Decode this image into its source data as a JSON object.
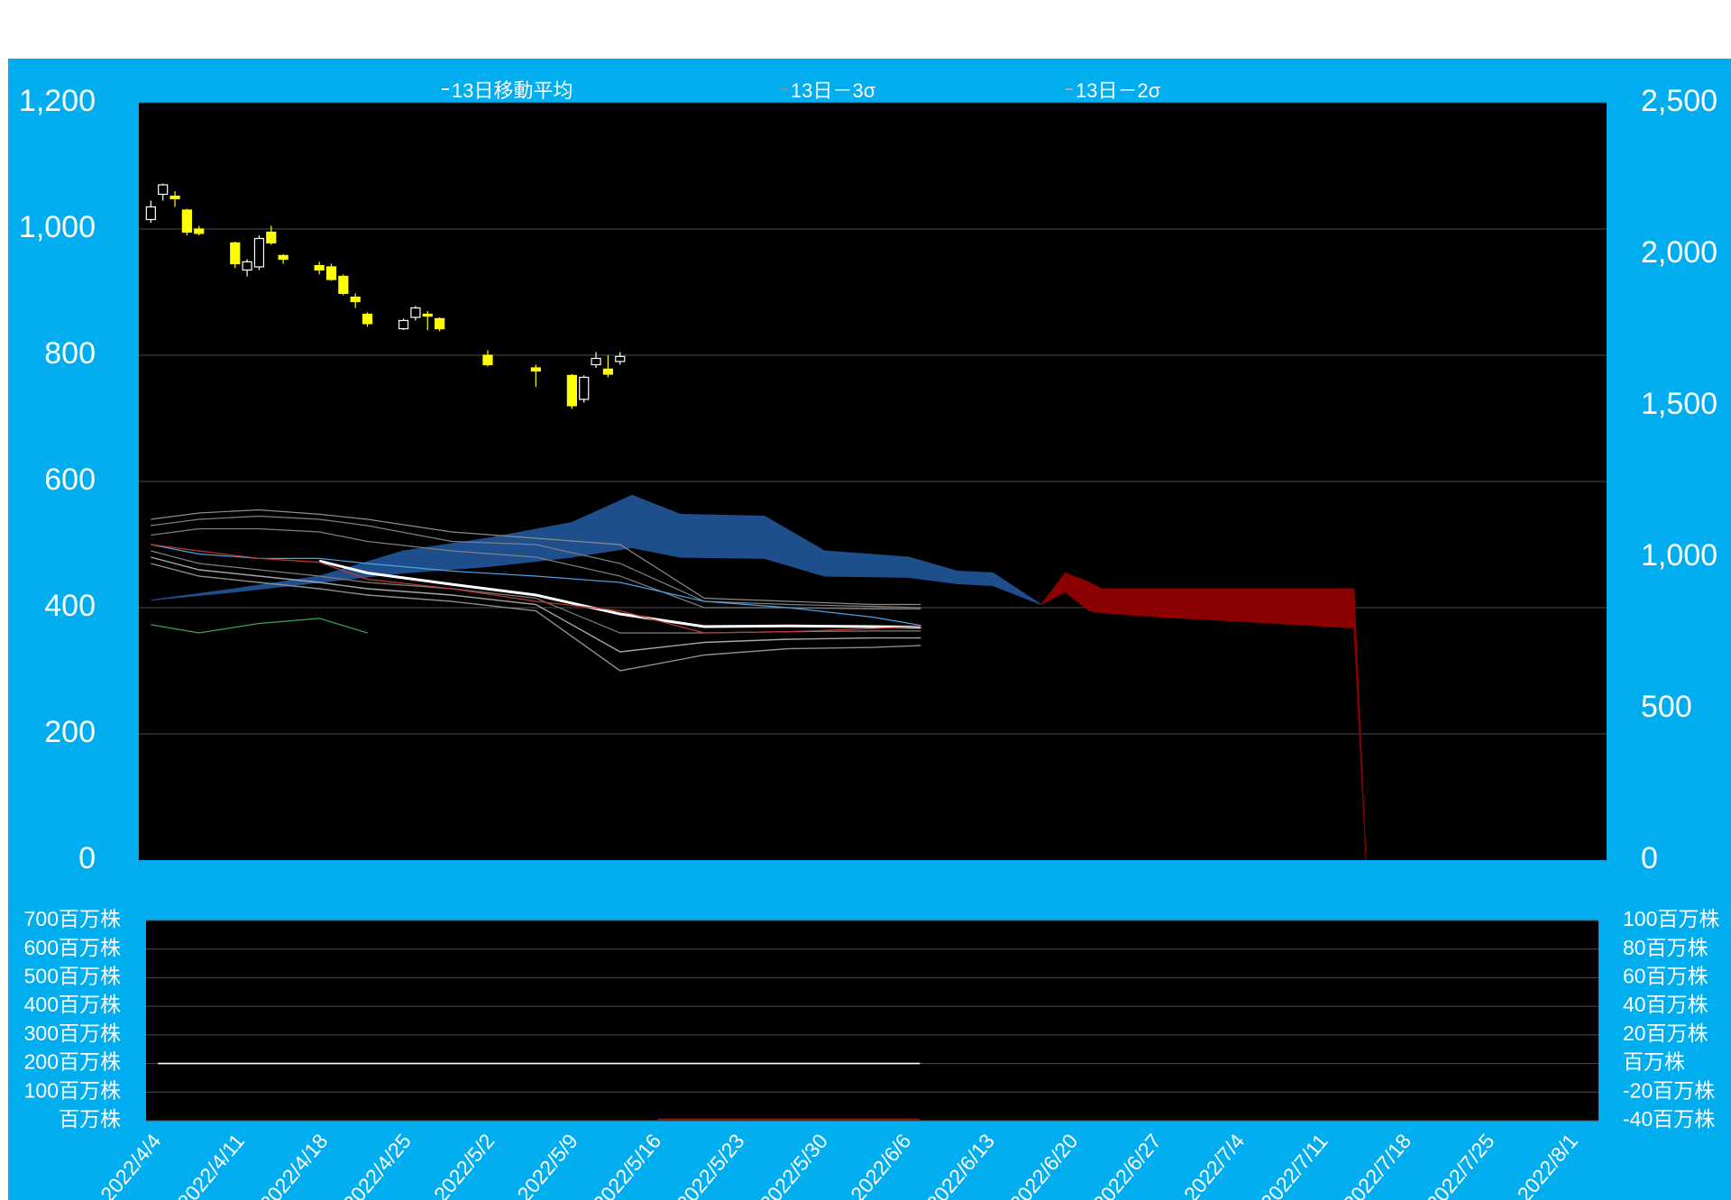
{
  "chart_data": [
    {
      "type": "candlestick",
      "xlim": [
        "2022/4/3",
        "2022/8/3"
      ],
      "ylim": [
        0,
        1200
      ],
      "yticks": [
        0,
        200,
        400,
        600,
        800,
        {
          "value": 1000,
          "label": "1,000"
        },
        {
          "value": 1200,
          "label": "1,200"
        }
      ],
      "y2lim": [
        0,
        2500
      ],
      "y2ticks": [
        0,
        500,
        {
          "value": 1000,
          "label": "1,000"
        },
        {
          "value": 1500,
          "label": "1,500"
        },
        {
          "value": 2000,
          "label": "2,000"
        },
        {
          "value": 2500,
          "label": "2,500"
        }
      ],
      "grid": true,
      "up_color": "#ffffff",
      "down_color": "#ffff00",
      "x": [
        "2022/4/4",
        "2022/4/5",
        "2022/4/6",
        "2022/4/7",
        "2022/4/8",
        "2022/4/11",
        "2022/4/12",
        "2022/4/13",
        "2022/4/14",
        "2022/4/15",
        "2022/4/18",
        "2022/4/19",
        "2022/4/20",
        "2022/4/21",
        "2022/4/22",
        "2022/4/25",
        "2022/4/26",
        "2022/4/27",
        "2022/4/28",
        "2022/5/2",
        "2022/5/6",
        "2022/5/9",
        "2022/5/10",
        "2022/5/11",
        "2022/5/12",
        "2022/5/13"
      ],
      "open": [
        1015,
        1055,
        1052,
        1030,
        1000,
        978,
        935,
        940,
        995,
        958,
        942,
        940,
        925,
        892,
        865,
        842,
        860,
        865,
        858,
        800,
        780,
        768,
        730,
        785,
        778,
        790
      ],
      "high": [
        1045,
        1072,
        1060,
        1032,
        1005,
        980,
        952,
        990,
        1005,
        960,
        948,
        945,
        928,
        898,
        868,
        858,
        878,
        870,
        860,
        808,
        785,
        770,
        768,
        805,
        800,
        805
      ],
      "low": [
        1010,
        1045,
        1035,
        990,
        990,
        938,
        925,
        935,
        975,
        945,
        928,
        918,
        895,
        875,
        845,
        840,
        855,
        840,
        838,
        782,
        750,
        715,
        725,
        780,
        765,
        785
      ],
      "close": [
        1035,
        1070,
        1048,
        995,
        993,
        945,
        948,
        985,
        978,
        952,
        935,
        920,
        898,
        885,
        850,
        855,
        875,
        862,
        842,
        785,
        775,
        720,
        765,
        795,
        770,
        798
      ],
      "lines": {
        "x": [
          "2022/4/4",
          "2022/4/8",
          "2022/4/13",
          "2022/4/18",
          "2022/4/22",
          "2022/4/29",
          "2022/5/6",
          "2022/5/13",
          "2022/5/20",
          "2022/5/27",
          "2022/6/3",
          "2022/6/7"
        ],
        "series": [
          {
            "name": "13日移動平均",
            "color": "#ffffff",
            "values": [
              null,
              null,
              null,
              474,
              455,
              437,
              420,
              390,
              370,
              371,
              370,
              369
            ]
          },
          {
            "name": "13日－3σ",
            "color": "#8c8c8c",
            "values": [
              470,
              450,
              440,
              430,
              420,
              410,
              395,
              300,
              325,
              335,
              337,
              340
            ]
          },
          {
            "name": "13日－2σ",
            "color": "#a6a6a6",
            "values": [
              480,
              460,
              450,
              440,
              430,
              420,
              405,
              330,
              345,
              350,
              352,
              352
            ]
          },
          {
            "color": "#7f7f7f",
            "values": [
              490,
              470,
              460,
              450,
              440,
              430,
              415,
              360,
              360,
              362,
              363,
              363
            ]
          },
          {
            "color": "#7f7f7f",
            "values": [
              515,
              525,
              525,
              520,
              505,
              490,
              480,
              450,
              400,
              400,
              398,
              398
            ]
          },
          {
            "color": "#7f7f7f",
            "values": [
              530,
              540,
              545,
              540,
              530,
              505,
              500,
              470,
              410,
              405,
              402,
              400
            ]
          },
          {
            "color": "#8c8c8c",
            "values": [
              540,
              550,
              555,
              548,
              540,
              520,
              510,
              500,
              415,
              410,
              405,
              405
            ]
          },
          {
            "color": "#4ba3e3",
            "values": [
              500,
              485,
              478,
              478,
              470,
              458,
              450,
              440,
              410,
              400,
              385,
              372
            ]
          },
          {
            "color": "#c0392b",
            "values": [
              500,
              490,
              478,
              472,
              445,
              430,
              410,
              395,
              360,
              362,
              367,
              370
            ]
          },
          {
            "color": "#3fa34d",
            "values": [
              373,
              360,
              375,
              383,
              360,
              null,
              null,
              null,
              null,
              null,
              null,
              null
            ]
          }
        ]
      },
      "bands": [
        {
          "color": "#1f4e8c",
          "x": [
            "2022/4/4",
            "2022/4/11",
            "2022/4/18",
            "2022/4/25",
            "2022/5/2",
            "2022/5/9",
            "2022/5/14",
            "2022/5/18",
            "2022/5/25",
            "2022/5/30",
            "2022/6/6",
            "2022/6/10",
            "2022/6/13",
            "2022/6/17"
          ],
          "upper": [
            412,
            430,
            450,
            490,
            510,
            535,
            578,
            548,
            545,
            490,
            480,
            458,
            455,
            405
          ],
          "lower": [
            412,
            425,
            440,
            455,
            465,
            480,
            495,
            480,
            478,
            450,
            448,
            438,
            435,
            405
          ]
        },
        {
          "color": "#8b0000",
          "x": [
            "2022/6/17",
            "2022/6/19",
            "2022/6/21",
            "2022/6/22",
            "2022/6/27",
            "2022/7/4",
            "2022/7/11",
            "2022/7/13",
            "2022/7/14"
          ],
          "upper": [
            405,
            455,
            440,
            430,
            430,
            430,
            430,
            430,
            0
          ],
          "lower": [
            405,
            425,
            395,
            392,
            385,
            378,
            370,
            368,
            0
          ]
        }
      ]
    },
    {
      "type": "line",
      "xlim": [
        "2022/4/3",
        "2022/8/3"
      ],
      "xticks": [
        "2022/4/4",
        "2022/4/11",
        "2022/4/18",
        "2022/4/25",
        "2022/5/2",
        "2022/5/9",
        "2022/5/16",
        "2022/5/23",
        "2022/5/30",
        "2022/6/6",
        "2022/6/13",
        "2022/6/20",
        "2022/6/27",
        "2022/7/4",
        "2022/7/11",
        "2022/7/18",
        "2022/7/25",
        "2022/8/1"
      ],
      "ylim": [
        0,
        700
      ],
      "yticks": [
        {
          "value": 0,
          "label": "百万株"
        },
        {
          "value": 100,
          "label": "100百万株"
        },
        {
          "value": 200,
          "label": "200百万株"
        },
        {
          "value": 300,
          "label": "300百万株"
        },
        {
          "value": 400,
          "label": "400百万株"
        },
        {
          "value": 500,
          "label": "500百万株"
        },
        {
          "value": 600,
          "label": "600百万株"
        },
        {
          "value": 700,
          "label": "700百万株"
        }
      ],
      "y2lim": [
        -40,
        100
      ],
      "y2ticks": [
        {
          "value": -40,
          "label": "-40百万株"
        },
        {
          "value": -20,
          "label": "-20百万株"
        },
        {
          "value": 0,
          "label": "百万株"
        },
        {
          "value": 20,
          "label": "20百万株"
        },
        {
          "value": 40,
          "label": "40百万株"
        },
        {
          "value": 60,
          "label": "60百万株"
        },
        {
          "value": 80,
          "label": "80百万株"
        },
        {
          "value": 100,
          "label": "100百万株"
        }
      ],
      "grid": true,
      "series": [
        {
          "color": "#ffffff",
          "x": [
            "2022/4/4",
            "2022/6/7"
          ],
          "values": [
            200,
            200
          ]
        },
        {
          "color": "#c00000",
          "axis": "y2",
          "x": [
            "2022/5/16",
            "2022/6/7"
          ],
          "values": [
            -39,
            -39
          ]
        }
      ]
    }
  ]
}
